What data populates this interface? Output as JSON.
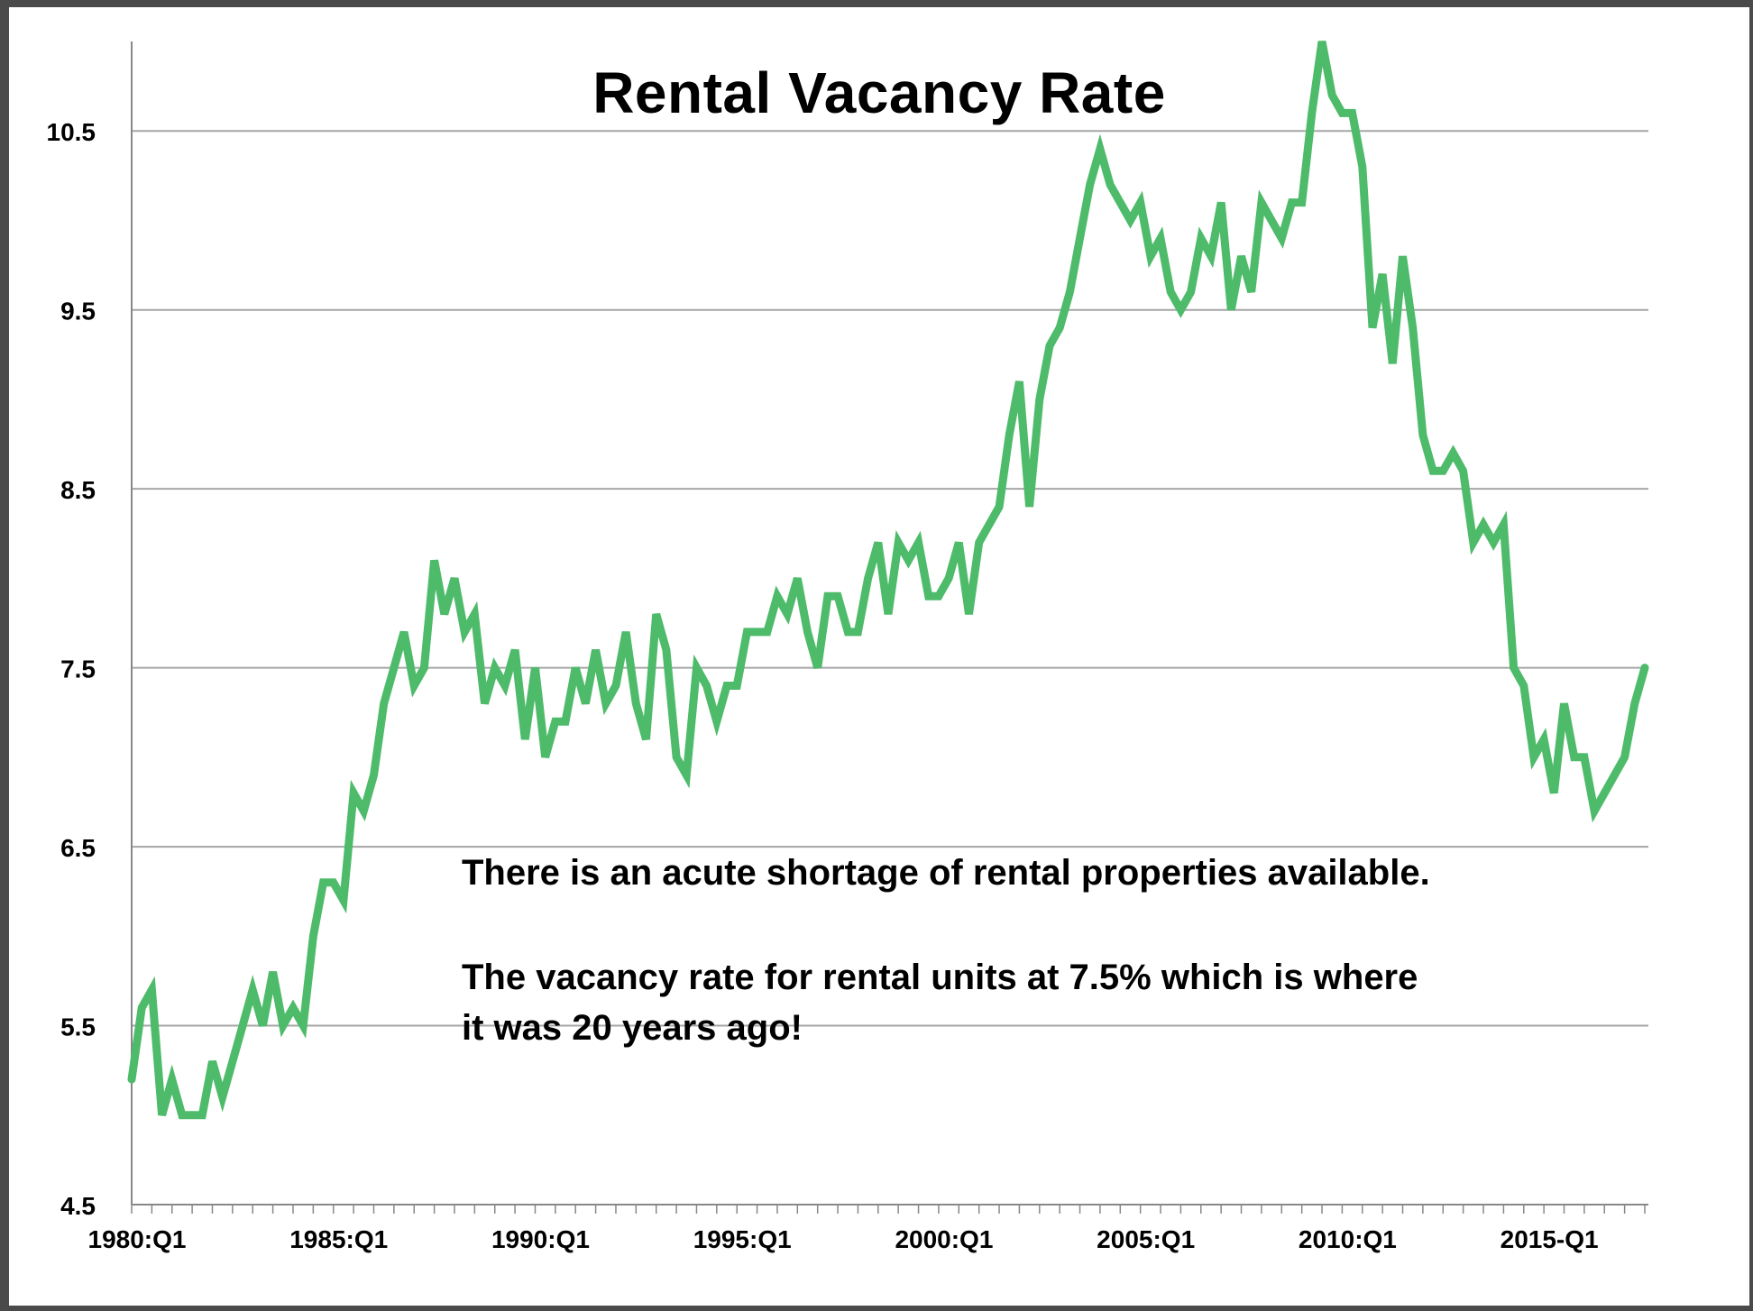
{
  "colors": {
    "line": "#4dbb6a",
    "grid": "#a6a6a6",
    "axis": "#888888",
    "text": "#000000"
  },
  "annotations": [
    "There is an acute shortage of rental properties available.",
    "The vacancy rate for rental units at 7.5% which is where",
    "it was 20 years ago!"
  ],
  "chart_data": {
    "type": "line",
    "title": "Rental Vacancy Rate",
    "xlabel": "",
    "ylabel": "",
    "ylim": [
      4.5,
      11
    ],
    "yticks": [
      "4.5",
      "5.5",
      "6.5",
      "7.5",
      "8.5",
      "9.5",
      "10.5"
    ],
    "x_tick_labels": [
      {
        "index": 0,
        "label": "1980:Q1"
      },
      {
        "index": 20,
        "label": "1985:Q1"
      },
      {
        "index": 40,
        "label": "1990:Q1"
      },
      {
        "index": 60,
        "label": "1995:Q1"
      },
      {
        "index": 80,
        "label": "2000:Q1"
      },
      {
        "index": 100,
        "label": "2005:Q1"
      },
      {
        "index": 120,
        "label": "2010:Q1"
      },
      {
        "index": 140,
        "label": "2015-Q1"
      }
    ],
    "grid": "horizontal",
    "legend": "none",
    "x_start": "1980:Q1",
    "x_end": "2017:Q4",
    "series": [
      {
        "values": [
          5.2,
          5.6,
          5.7,
          5.0,
          5.2,
          5.0,
          5.0,
          5.0,
          5.3,
          5.1,
          5.3,
          5.5,
          5.7,
          5.5,
          5.8,
          5.5,
          5.6,
          5.5,
          6.0,
          6.3,
          6.3,
          6.2,
          6.8,
          6.7,
          6.9,
          7.3,
          7.5,
          7.7,
          7.4,
          7.5,
          8.1,
          7.8,
          8.0,
          7.7,
          7.8,
          7.3,
          7.5,
          7.4,
          7.6,
          7.1,
          7.5,
          7.0,
          7.2,
          7.2,
          7.5,
          7.3,
          7.6,
          7.3,
          7.4,
          7.7,
          7.3,
          7.1,
          7.8,
          7.6,
          7.0,
          6.9,
          7.5,
          7.4,
          7.2,
          7.4,
          7.4,
          7.7,
          7.7,
          7.7,
          7.9,
          7.8,
          8.0,
          7.7,
          7.5,
          7.9,
          7.9,
          7.7,
          7.7,
          8.0,
          8.2,
          7.8,
          8.2,
          8.1,
          8.2,
          7.9,
          7.9,
          8.0,
          8.2,
          7.8,
          8.2,
          8.3,
          8.4,
          8.8,
          9.1,
          8.4,
          9.0,
          9.3,
          9.4,
          9.6,
          9.9,
          10.2,
          10.4,
          10.2,
          10.1,
          10.0,
          10.1,
          9.8,
          9.9,
          9.6,
          9.5,
          9.6,
          9.9,
          9.8,
          10.1,
          9.5,
          9.8,
          9.6,
          10.1,
          10.0,
          9.9,
          10.1,
          10.1,
          10.6,
          11.0,
          10.7,
          10.6,
          10.6,
          10.3,
          9.4,
          9.7,
          9.2,
          9.8,
          9.4,
          8.8,
          8.6,
          8.6,
          8.7,
          8.6,
          8.2,
          8.3,
          8.2,
          8.3,
          7.5,
          7.4,
          7.0,
          7.1,
          6.8,
          7.3,
          7.0,
          7.0,
          6.7,
          6.8,
          6.9,
          7.0,
          7.3,
          7.5
        ]
      }
    ]
  }
}
